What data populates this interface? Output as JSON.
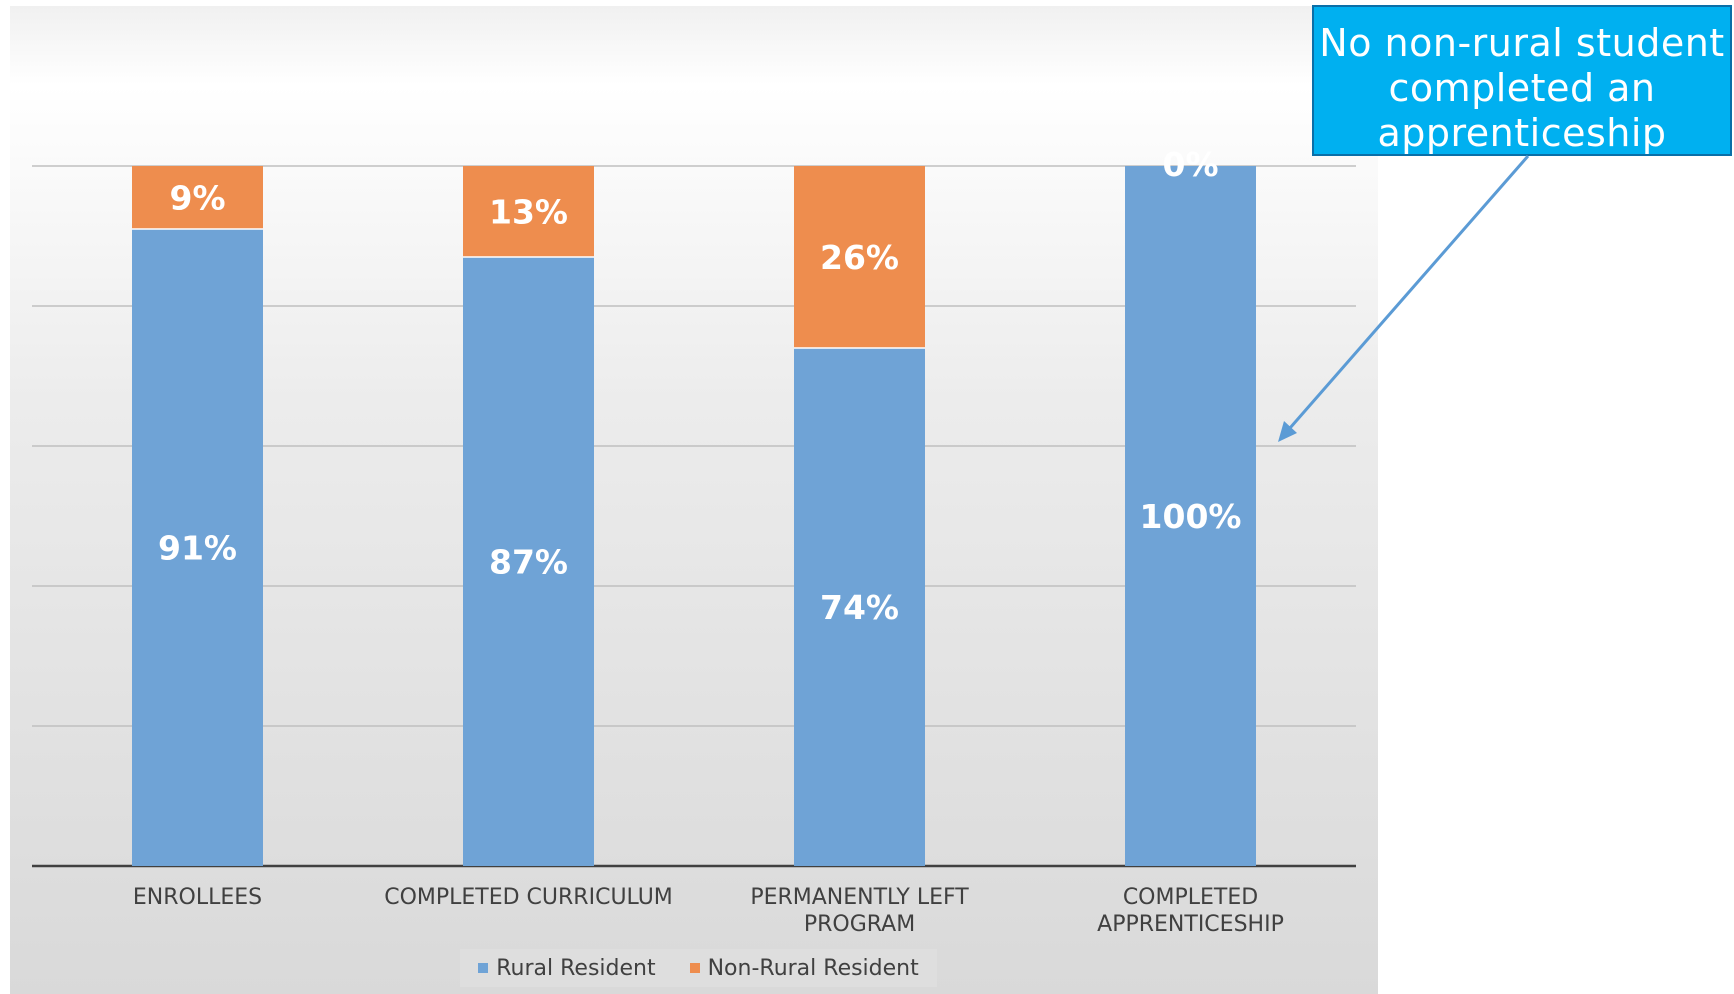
{
  "callout": {
    "text": "No non-rural student completed an apprenticeship"
  },
  "legend": {
    "items": [
      {
        "label": "Rural Resident"
      },
      {
        "label": "Non-Rural Resident"
      }
    ]
  },
  "chart_data": {
    "type": "bar",
    "stacked": true,
    "categories": [
      "ENROLLEES",
      "COMPLETED CURRICULUM",
      "PERMANENTLY LEFT PROGRAM",
      "COMPLETED APPRENTICESHIP"
    ],
    "category_lines": [
      [
        "ENROLLEES"
      ],
      [
        "COMPLETED CURRICULUM"
      ],
      [
        "PERMANENTLY LEFT",
        "PROGRAM"
      ],
      [
        "COMPLETED",
        "APPRENTICESHIP"
      ]
    ],
    "series": [
      {
        "name": "Rural Resident",
        "values": [
          91,
          87,
          74,
          100
        ],
        "color": "#6fa3d6",
        "labels": [
          "91%",
          "87%",
          "74%",
          "100%"
        ]
      },
      {
        "name": "Non-Rural Resident",
        "values": [
          9,
          13,
          26,
          0
        ],
        "color": "#ee8d4e",
        "labels": [
          "9%",
          "13%",
          "26%",
          "0%"
        ]
      }
    ],
    "ylim": [
      0,
      100
    ],
    "grid": true,
    "legend_position": "bottom",
    "title": "",
    "xlabel": "",
    "ylabel": ""
  }
}
